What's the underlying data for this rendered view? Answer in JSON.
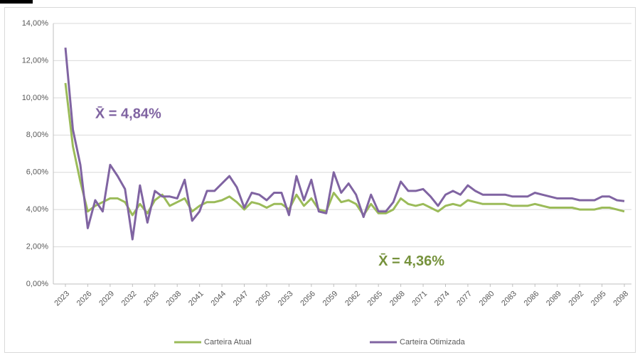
{
  "chart_data": {
    "type": "line",
    "x": [
      2023,
      2024,
      2025,
      2026,
      2027,
      2028,
      2029,
      2030,
      2031,
      2032,
      2033,
      2034,
      2035,
      2036,
      2037,
      2038,
      2039,
      2040,
      2041,
      2042,
      2043,
      2044,
      2045,
      2046,
      2047,
      2048,
      2049,
      2050,
      2051,
      2052,
      2053,
      2054,
      2055,
      2056,
      2057,
      2058,
      2059,
      2060,
      2061,
      2062,
      2063,
      2064,
      2065,
      2066,
      2067,
      2068,
      2069,
      2070,
      2071,
      2072,
      2073,
      2074,
      2075,
      2076,
      2077,
      2078,
      2079,
      2080,
      2081,
      2082,
      2083,
      2084,
      2085,
      2086,
      2087,
      2088,
      2089,
      2090,
      2091,
      2092,
      2093,
      2094,
      2095,
      2096,
      2097,
      2098
    ],
    "xlim": [
      2023,
      2098
    ],
    "xticks": [
      2023,
      2026,
      2029,
      2032,
      2035,
      2038,
      2041,
      2044,
      2047,
      2050,
      2053,
      2056,
      2059,
      2062,
      2065,
      2068,
      2071,
      2074,
      2077,
      2080,
      2083,
      2086,
      2089,
      2092,
      2095,
      2098
    ],
    "ylim": [
      0,
      14
    ],
    "yticks": [
      {
        "value": 0,
        "label": "0,00%"
      },
      {
        "value": 2,
        "label": "2,00%"
      },
      {
        "value": 4,
        "label": "4,00%"
      },
      {
        "value": 6,
        "label": "6,00%"
      },
      {
        "value": 8,
        "label": "8,00%"
      },
      {
        "value": 10,
        "label": "10,00%"
      },
      {
        "value": 12,
        "label": "12,00%"
      },
      {
        "value": 14,
        "label": "14,00%"
      }
    ],
    "grid": true,
    "legend": "bottom",
    "series": [
      {
        "name": "Carteira Atual",
        "color": "#9bbb59",
        "values": [
          10.8,
          7.4,
          5.5,
          3.9,
          4.2,
          4.4,
          4.6,
          4.6,
          4.4,
          3.7,
          4.3,
          3.8,
          4.5,
          4.8,
          4.2,
          4.4,
          4.6,
          3.9,
          4.2,
          4.4,
          4.4,
          4.5,
          4.7,
          4.4,
          4.0,
          4.4,
          4.3,
          4.1,
          4.3,
          4.3,
          4.0,
          4.8,
          4.2,
          4.6,
          4.0,
          3.9,
          4.9,
          4.4,
          4.5,
          4.3,
          3.7,
          4.3,
          3.8,
          3.8,
          4.0,
          4.6,
          4.3,
          4.2,
          4.3,
          4.1,
          3.9,
          4.2,
          4.3,
          4.2,
          4.5,
          4.4,
          4.3,
          4.3,
          4.3,
          4.3,
          4.2,
          4.2,
          4.2,
          4.3,
          4.2,
          4.1,
          4.1,
          4.1,
          4.1,
          4.0,
          4.0,
          4.0,
          4.1,
          4.1,
          4.0,
          3.9
        ]
      },
      {
        "name": "Carteira Otimizada",
        "color": "#8064a2",
        "values": [
          12.7,
          8.3,
          6.4,
          3.0,
          4.5,
          3.9,
          6.4,
          5.8,
          5.1,
          2.4,
          5.3,
          3.3,
          5.0,
          4.7,
          4.7,
          4.6,
          5.6,
          3.4,
          3.9,
          5.0,
          5.0,
          5.4,
          5.8,
          5.2,
          4.1,
          4.9,
          4.8,
          4.5,
          4.9,
          4.9,
          3.7,
          5.8,
          4.5,
          5.6,
          3.9,
          3.8,
          6.0,
          4.9,
          5.4,
          4.8,
          3.6,
          4.8,
          3.9,
          3.9,
          4.4,
          5.5,
          5.0,
          5.0,
          5.1,
          4.7,
          4.2,
          4.8,
          5.0,
          4.8,
          5.3,
          5.0,
          4.8,
          4.8,
          4.8,
          4.8,
          4.7,
          4.7,
          4.7,
          4.9,
          4.8,
          4.7,
          4.6,
          4.6,
          4.6,
          4.5,
          4.5,
          4.5,
          4.7,
          4.7,
          4.5,
          4.45
        ]
      }
    ],
    "annotations": [
      {
        "text": "X̄ = 4,84%",
        "color": "#8064a2",
        "x": 2027,
        "y": 9.1
      },
      {
        "text": "X̄ = 4,36%",
        "color": "#76923c",
        "x": 2065,
        "y": 1.2
      }
    ]
  }
}
